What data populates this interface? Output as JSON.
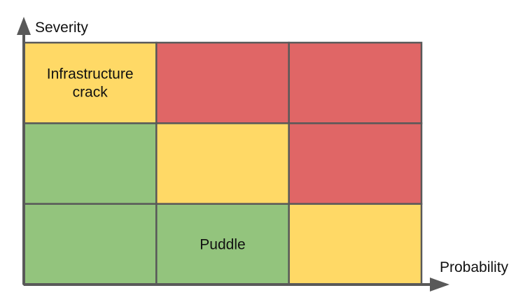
{
  "axes": {
    "y_label": "Severity",
    "x_label": "Probability"
  },
  "colors": {
    "low": "#93c47d",
    "medium": "#ffd966",
    "high": "#e06666",
    "grid": "#595959",
    "axis": "#595959"
  },
  "matrix": {
    "rows": 3,
    "cols": 3,
    "cells": [
      [
        {
          "level": "medium",
          "label_lines": [
            "Infrastructure",
            "crack"
          ]
        },
        {
          "level": "high",
          "label_lines": []
        },
        {
          "level": "high",
          "label_lines": []
        }
      ],
      [
        {
          "level": "low",
          "label_lines": []
        },
        {
          "level": "medium",
          "label_lines": []
        },
        {
          "level": "high",
          "label_lines": []
        }
      ],
      [
        {
          "level": "low",
          "label_lines": []
        },
        {
          "level": "low",
          "label_lines": [
            "Puddle"
          ]
        },
        {
          "level": "medium",
          "label_lines": []
        }
      ]
    ]
  }
}
